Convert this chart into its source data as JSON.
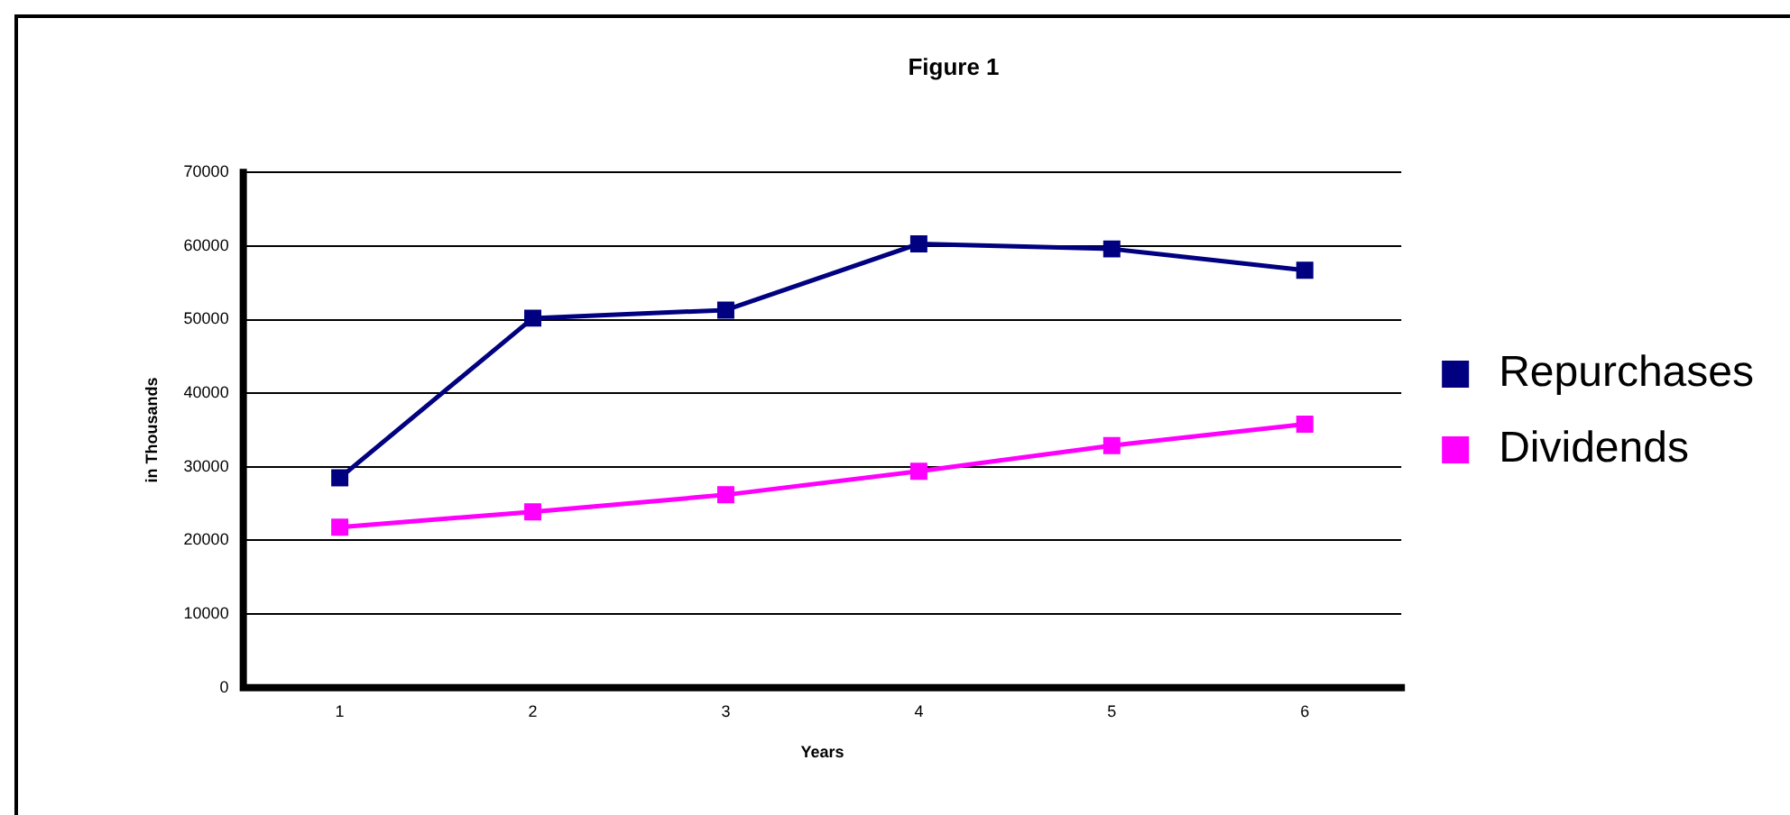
{
  "chart_data": {
    "type": "line",
    "title": "Figure 1",
    "xlabel": "Years",
    "ylabel": "in Thousands",
    "categories": [
      "1",
      "2",
      "3",
      "4",
      "5",
      "6"
    ],
    "series": [
      {
        "name": "Repurchases",
        "color": "#000080",
        "values": [
          28500,
          50200,
          51300,
          60300,
          59600,
          56700
        ]
      },
      {
        "name": "Dividends",
        "color": "#ff00ff",
        "values": [
          21800,
          23900,
          26200,
          29400,
          32900,
          35800
        ]
      }
    ],
    "ylim": [
      0,
      70000
    ],
    "yticks": [
      0,
      10000,
      20000,
      30000,
      40000,
      50000,
      60000,
      70000
    ],
    "grid": "y",
    "legend": "right",
    "marker": "square",
    "line_style": "solid"
  }
}
